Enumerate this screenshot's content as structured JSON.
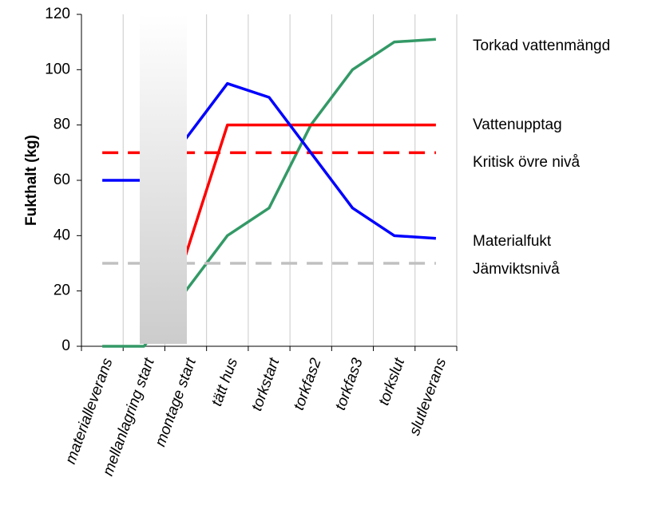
{
  "chart_data": {
    "type": "line",
    "ylabel": "Fukthalt (kg)",
    "categories": [
      "materialleverans",
      "mellanlagring start",
      "montage start",
      "tätt hus",
      "torkstart",
      "torkfas2",
      "torkfas3",
      "torkslut",
      "slutleverans"
    ],
    "series": [
      {
        "name": "Torkad vattenmängd",
        "color": "#339966",
        "style": "solid",
        "values": [
          0,
          0,
          20,
          40,
          50,
          80,
          100,
          110,
          111
        ]
      },
      {
        "name": "Vattenupptag",
        "color": "#ff0000",
        "style": "solid",
        "values": [
          null,
          null,
          33,
          80,
          80,
          80,
          80,
          80,
          80
        ]
      },
      {
        "name": "Kritisk övre nivå",
        "color": "#ff0000",
        "style": "dashed",
        "values": [
          70,
          70,
          70,
          70,
          70,
          70,
          70,
          70,
          70
        ]
      },
      {
        "name": "Materialfukt",
        "color": "#0000ff",
        "style": "solid",
        "values": [
          60,
          60,
          75,
          95,
          90,
          70,
          50,
          40,
          39
        ]
      },
      {
        "name": "Jämviktsnivå",
        "color": "#c0c0c0",
        "style": "dashed",
        "values": [
          30,
          30,
          30,
          30,
          30,
          30,
          30,
          30,
          30
        ]
      }
    ],
    "ylim": [
      0,
      120
    ],
    "yticks": [
      0,
      20,
      40,
      60,
      80,
      100,
      120
    ],
    "grid": true
  }
}
